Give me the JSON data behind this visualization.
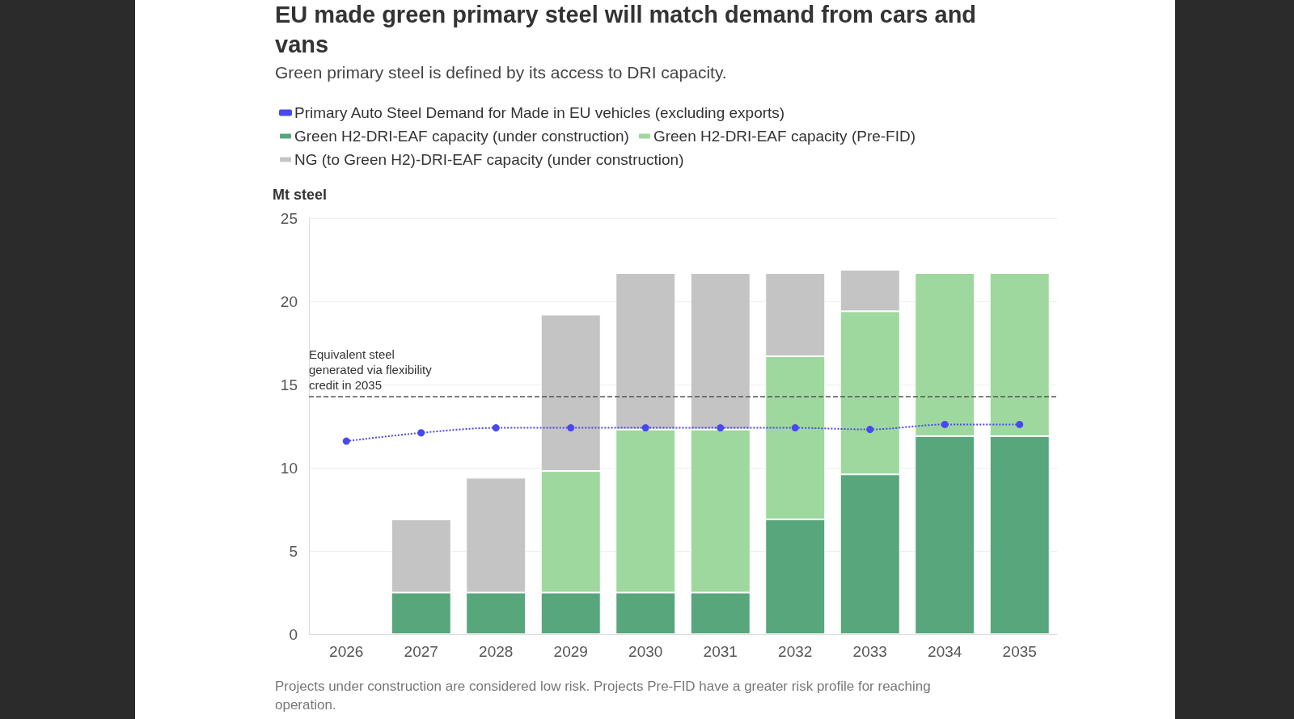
{
  "chart_data": {
    "type": "bar",
    "title": "EU made green primary steel will match demand from cars and vans",
    "subtitle": "Green primary steel is defined by its access to DRI capacity.",
    "ylabel": "Mt steel",
    "categories": [
      "2026",
      "2027",
      "2028",
      "2029",
      "2030",
      "2031",
      "2032",
      "2033",
      "2034",
      "2035"
    ],
    "stacked": true,
    "series": [
      {
        "name": "Primary Auto Steel Demand for Made in EU vehicles (excluding exports)",
        "type": "line",
        "color": "#4848f0",
        "marker": "circle",
        "line_style": "dotted",
        "values": [
          11.6,
          12.1,
          12.4,
          12.4,
          12.4,
          12.4,
          12.4,
          12.3,
          12.6,
          12.6
        ]
      },
      {
        "name": "Green H2-DRI-EAF capacity (under construction)",
        "color": "#58a67c",
        "values": [
          null,
          2.5,
          2.5,
          2.5,
          2.5,
          2.5,
          6.9,
          9.6,
          11.9,
          11.9
        ]
      },
      {
        "name": "Green H2-DRI-EAF capacity (Pre-FID)",
        "color": "#9ed89e",
        "values": [
          null,
          null,
          null,
          7.3,
          9.8,
          9.8,
          9.8,
          9.8,
          9.8,
          9.8
        ]
      },
      {
        "name": "NG (to Green H2)-DRI-EAF capacity (under construction)",
        "color": "#c4c4c4",
        "values": [
          null,
          4.4,
          6.9,
          9.4,
          9.4,
          9.4,
          5.0,
          2.5,
          null,
          null
        ]
      }
    ],
    "ylim": [
      0,
      25
    ],
    "yticks": [
      0,
      5,
      10,
      15,
      20,
      25
    ],
    "grid": "y",
    "legend": "top left",
    "ref_lines": [
      {
        "axis": "y",
        "value": 14.3,
        "label": "Equivalent steel generated via flexibility credit in 2035",
        "color": "#555555",
        "line_style": "dashed"
      }
    ],
    "annotations": [
      "Projects under construction are considered low risk. Projects Pre-FID have a greater risk profile for reaching operation."
    ]
  }
}
